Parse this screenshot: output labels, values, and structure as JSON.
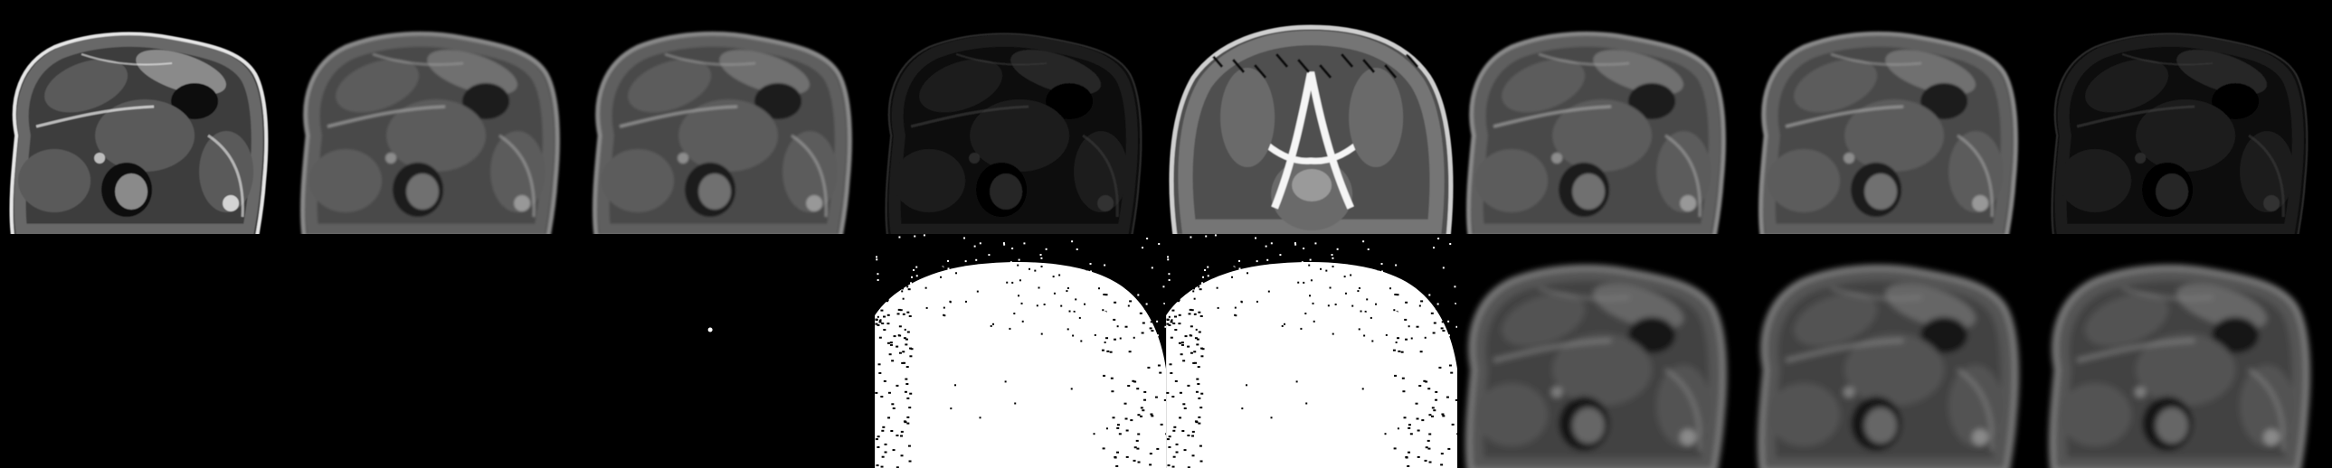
{
  "montage": {
    "background": "#000000",
    "rows": [
      {
        "tiles": [
          {
            "kind": "mri-axial",
            "style": "high-contrast"
          },
          {
            "kind": "mri-axial",
            "style": "soft"
          },
          {
            "kind": "mri-axial",
            "style": "soft"
          },
          {
            "kind": "mri-axial",
            "style": "edge-dim"
          },
          {
            "kind": "mri-axial",
            "style": "t2-bright-spine"
          },
          {
            "kind": "mri-axial",
            "style": "soft"
          },
          {
            "kind": "mri-axial",
            "style": "soft"
          },
          {
            "kind": "mri-axial",
            "style": "edge-dim"
          }
        ]
      },
      {
        "tiles": [
          {
            "kind": "blank"
          },
          {
            "kind": "blank"
          },
          {
            "kind": "blank-dot"
          },
          {
            "kind": "binary-mask"
          },
          {
            "kind": "binary-mask"
          },
          {
            "kind": "mri-axial",
            "style": "blurred"
          },
          {
            "kind": "mri-axial",
            "style": "blurred"
          },
          {
            "kind": "mri-axial",
            "style": "blurred"
          }
        ]
      }
    ]
  }
}
